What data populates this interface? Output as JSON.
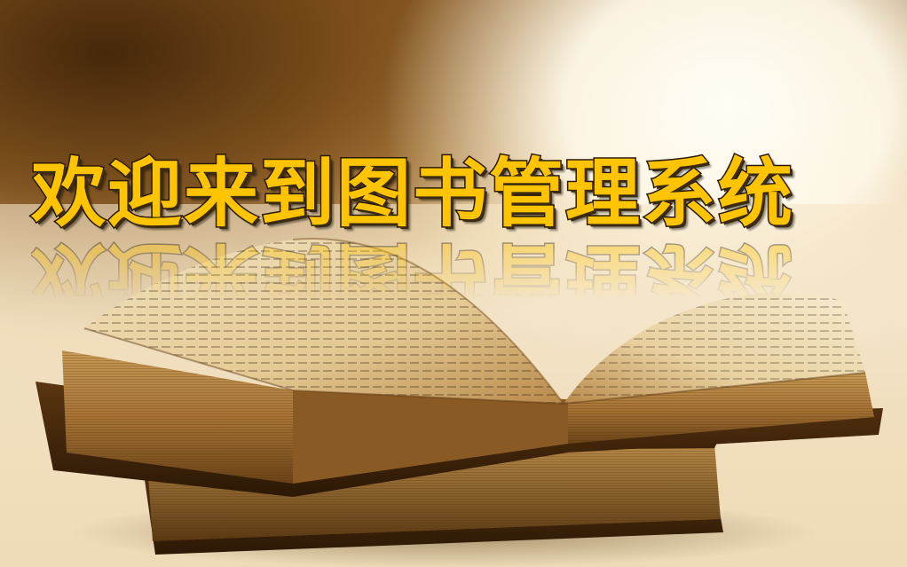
{
  "slide": {
    "title": "欢迎来到图书管理系统"
  },
  "colors": {
    "title_fill": "#ffc400",
    "title_outline": "#2a1a05",
    "background_dark": "#5a3810",
    "background_light": "#fffdf5"
  },
  "image": {
    "subject": "open-old-books-photo"
  }
}
